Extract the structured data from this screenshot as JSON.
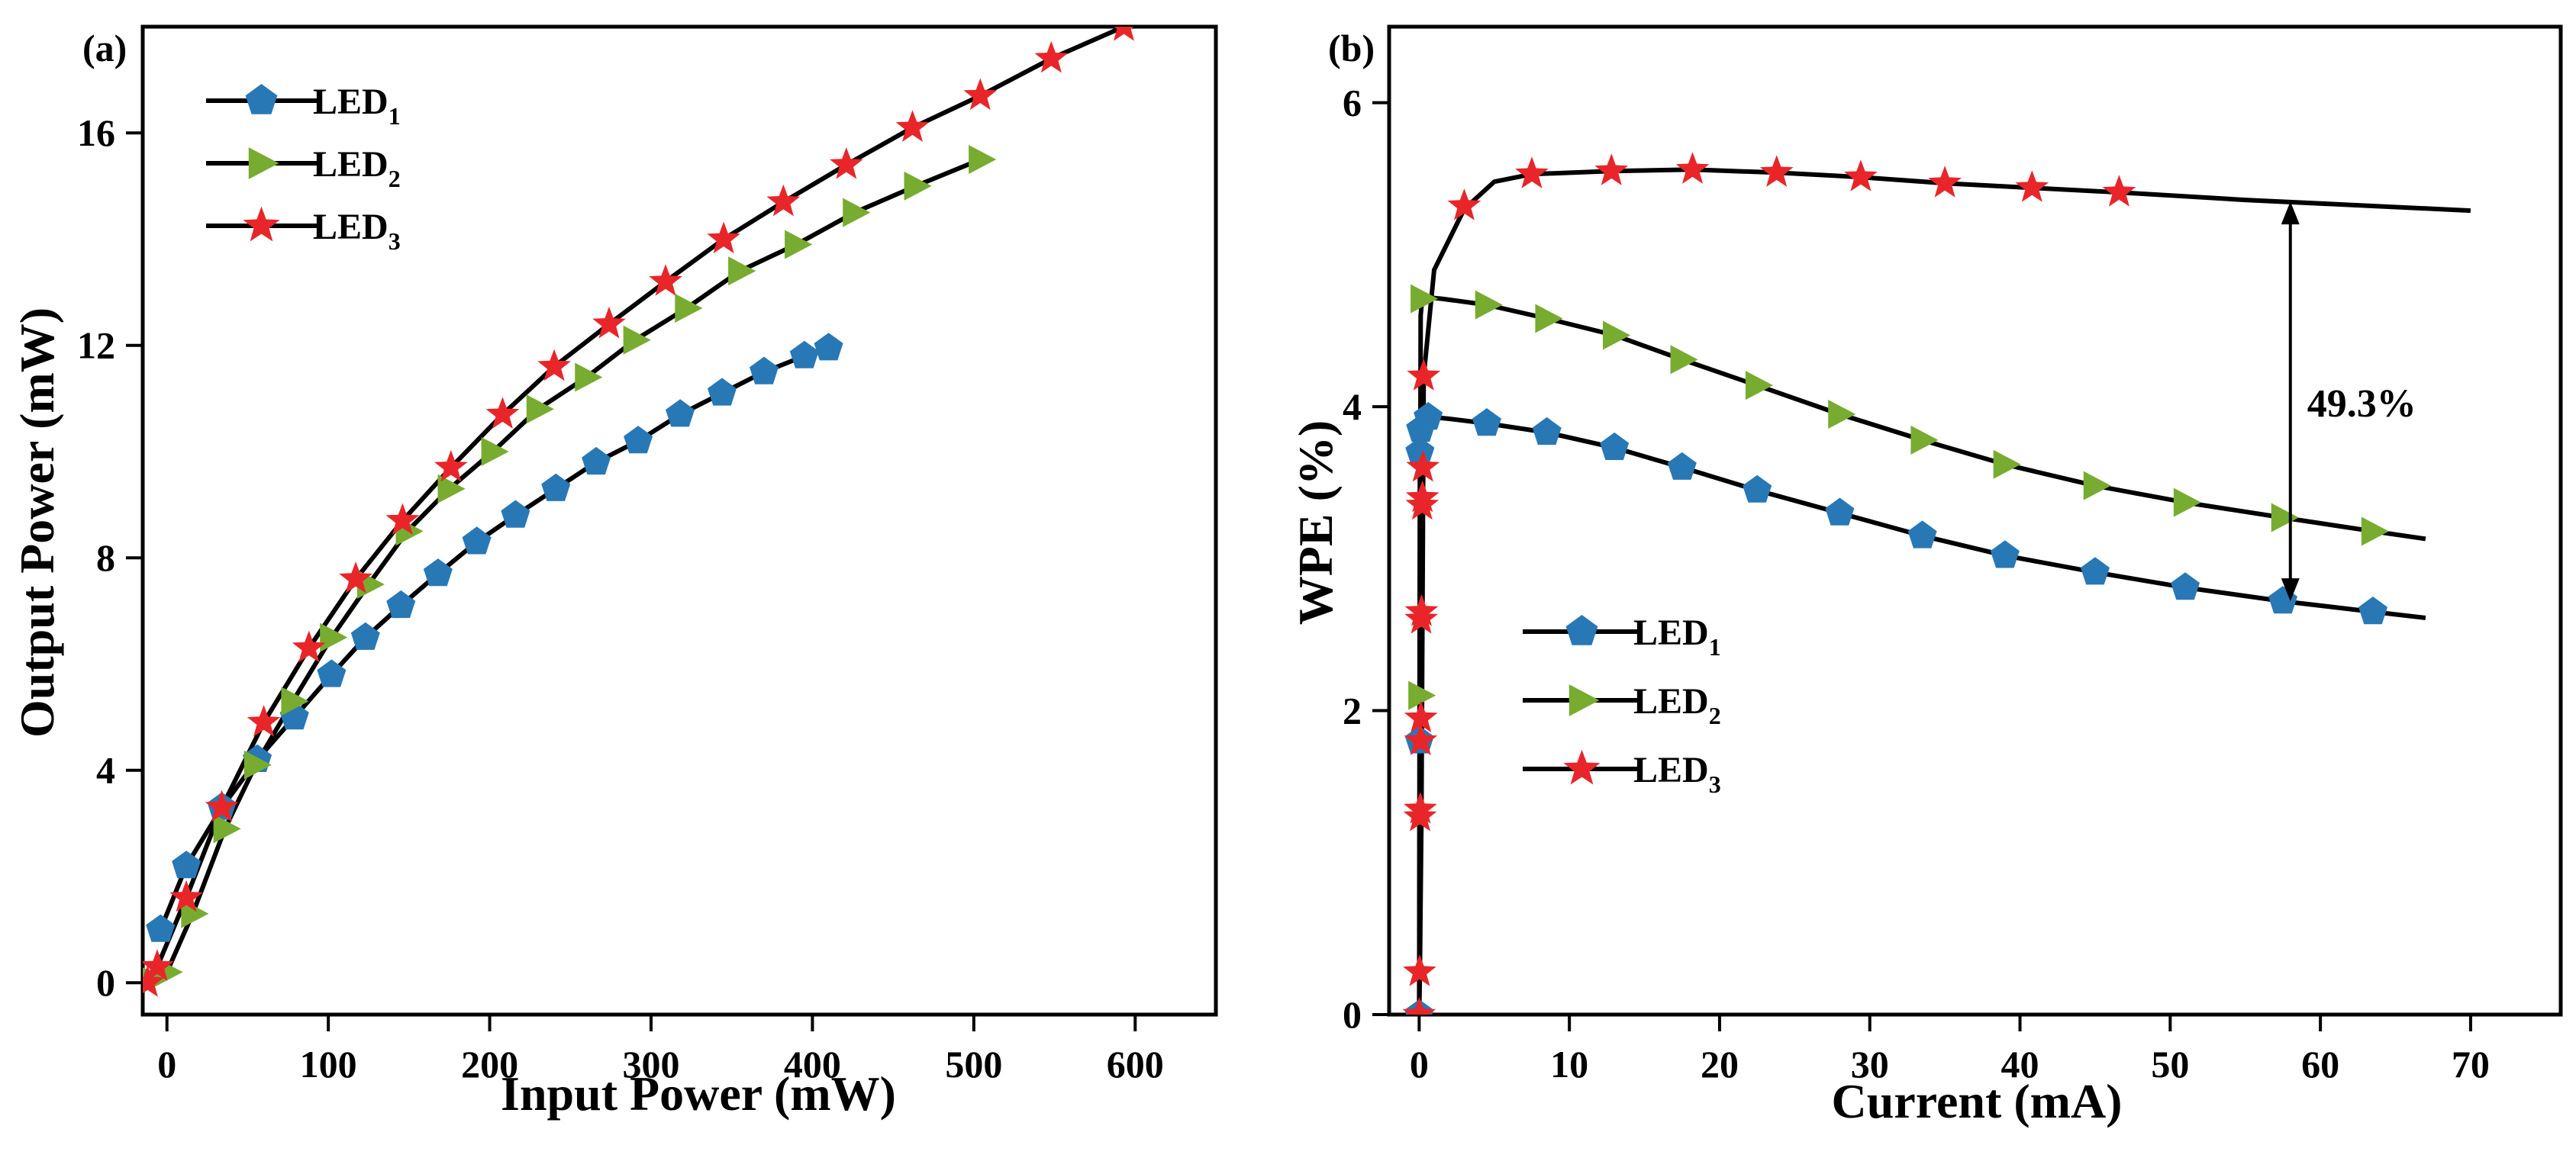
{
  "chart_data": [
    {
      "type": "line",
      "panel_label": "(a)",
      "xlabel": "Input Power (mW)",
      "ylabel": "Output Power (mW)",
      "xlim": [
        -15,
        650
      ],
      "ylim": [
        -0.6,
        18.0
      ],
      "xticks": [
        0,
        100,
        200,
        300,
        400,
        500,
        600
      ],
      "yticks": [
        0,
        4,
        8,
        12,
        16
      ],
      "legend_position": "top-left",
      "series": [
        {
          "name": "LED",
          "subscript": "1",
          "marker": "pentagon",
          "color": "#2878b5",
          "x": [
            -4,
            12,
            34,
            56,
            79,
            102,
            123,
            145,
            168,
            192,
            216,
            241,
            266,
            292,
            318,
            344,
            370,
            395,
            410
          ],
          "y": [
            1.0,
            2.2,
            3.3,
            4.2,
            5.0,
            5.8,
            6.5,
            7.1,
            7.7,
            8.3,
            8.8,
            9.3,
            9.8,
            10.2,
            10.7,
            11.1,
            11.5,
            11.8,
            11.95
          ]
        },
        {
          "name": "LED",
          "subscript": "2",
          "marker": "triangle-right",
          "color": "#77ac30",
          "x": [
            -10,
            0,
            16,
            36,
            55,
            78,
            102,
            125,
            149,
            175,
            202,
            230,
            260,
            290,
            322,
            355,
            390,
            426,
            464,
            504
          ],
          "y": [
            0.05,
            0.2,
            1.3,
            2.9,
            4.1,
            5.3,
            6.5,
            7.5,
            8.5,
            9.3,
            10.0,
            10.8,
            11.4,
            12.1,
            12.7,
            13.4,
            13.9,
            14.5,
            15.0,
            15.5
          ]
        },
        {
          "name": "LED",
          "subscript": "3",
          "marker": "star",
          "color": "#e8262a",
          "x": [
            -12,
            -6,
            12,
            34,
            60,
            88,
            117,
            146,
            176,
            208,
            240,
            274,
            309,
            345,
            382,
            421,
            462,
            504,
            548,
            593
          ],
          "y": [
            0.0,
            0.3,
            1.6,
            3.3,
            4.9,
            6.3,
            7.6,
            8.7,
            9.7,
            10.7,
            11.6,
            12.4,
            13.2,
            14.0,
            14.7,
            15.4,
            16.1,
            16.7,
            17.4,
            18.0
          ]
        }
      ]
    },
    {
      "type": "line",
      "panel_label": "(b)",
      "xlabel": "Current (mA)",
      "ylabel": "WPE (%)",
      "xlim": [
        -2,
        76
      ],
      "ylim": [
        0,
        6.5
      ],
      "xticks": [
        0,
        10,
        20,
        30,
        40,
        50,
        60,
        70
      ],
      "yticks": [
        0,
        2,
        4,
        6
      ],
      "legend_position": "bottom-left",
      "annotation": {
        "text": "49.3%",
        "x": 58,
        "y_top": 5.35,
        "y_bottom": 2.72
      },
      "series": [
        {
          "name": "LED",
          "subscript": "1",
          "marker": "pentagon",
          "color": "#2878b5",
          "line_x": [
            0,
            0.02,
            0.05,
            0.1,
            0.3,
            0.6,
            1.0,
            2.0,
            4.5,
            8.5,
            13,
            17.5,
            22.5,
            28,
            33.5,
            39,
            45,
            51,
            57.5,
            63.5,
            67
          ],
          "line_y": [
            0.0,
            1.8,
            3.7,
            3.85,
            3.92,
            3.93,
            3.93,
            3.92,
            3.89,
            3.83,
            3.73,
            3.6,
            3.45,
            3.3,
            3.15,
            3.02,
            2.91,
            2.81,
            2.72,
            2.65,
            2.61
          ],
          "marker_x": [
            0,
            0.02,
            0.05,
            0.1,
            0.6,
            4.5,
            8.5,
            13,
            17.5,
            22.5,
            28,
            33.5,
            39,
            45,
            51,
            57.5,
            63.5
          ],
          "marker_y": [
            0.0,
            1.8,
            3.7,
            3.85,
            3.93,
            3.89,
            3.83,
            3.73,
            3.6,
            3.45,
            3.3,
            3.15,
            3.02,
            2.91,
            2.81,
            2.72,
            2.65
          ]
        },
        {
          "name": "LED",
          "subscript": "2",
          "marker": "triangle-right",
          "color": "#77ac30",
          "line_x": [
            0,
            0.05,
            0.1,
            0.2,
            0.4,
            1.5,
            4.5,
            8.5,
            13,
            17.5,
            22.5,
            28,
            33.5,
            39,
            45,
            51,
            57.5,
            63.5,
            67
          ],
          "line_y": [
            0.0,
            2.1,
            4.6,
            4.71,
            4.72,
            4.71,
            4.67,
            4.58,
            4.47,
            4.31,
            4.14,
            3.95,
            3.78,
            3.62,
            3.48,
            3.37,
            3.27,
            3.18,
            3.13
          ],
          "marker_x": [
            0.05,
            0.2,
            4.5,
            8.5,
            13,
            17.5,
            22.5,
            28,
            33.5,
            39,
            45,
            51,
            57.5,
            63.5
          ],
          "marker_y": [
            2.1,
            4.71,
            4.67,
            4.58,
            4.47,
            4.31,
            4.14,
            3.95,
            3.78,
            3.62,
            3.48,
            3.37,
            3.27,
            3.18
          ]
        },
        {
          "name": "LED",
          "subscript": "3",
          "marker": "star",
          "color": "#e8262a",
          "line_x": [
            0,
            0.05,
            0.15,
            0.3,
            1.0,
            3.0,
            5.0,
            7.5,
            12.8,
            18.2,
            23.8,
            29.4,
            35,
            40.8,
            46.6,
            55,
            70
          ],
          "line_y": [
            0.0,
            0.28,
            1.3,
            4.2,
            4.9,
            5.3,
            5.48,
            5.53,
            5.55,
            5.56,
            5.54,
            5.51,
            5.47,
            5.44,
            5.41,
            5.36,
            5.29
          ],
          "marker_x": [
            0.0,
            0.03,
            0.06,
            0.08,
            0.1,
            0.12,
            0.14,
            0.16,
            0.2,
            0.22,
            0.25,
            0.3,
            3.0,
            7.5,
            12.8,
            18.2,
            23.8,
            29.4,
            35,
            40.8,
            46.6
          ],
          "marker_y": [
            0.0,
            0.28,
            1.3,
            1.35,
            1.8,
            1.95,
            2.6,
            2.65,
            3.35,
            3.4,
            3.6,
            4.2,
            5.32,
            5.53,
            5.55,
            5.56,
            5.54,
            5.51,
            5.47,
            5.44,
            5.41
          ]
        }
      ]
    }
  ]
}
